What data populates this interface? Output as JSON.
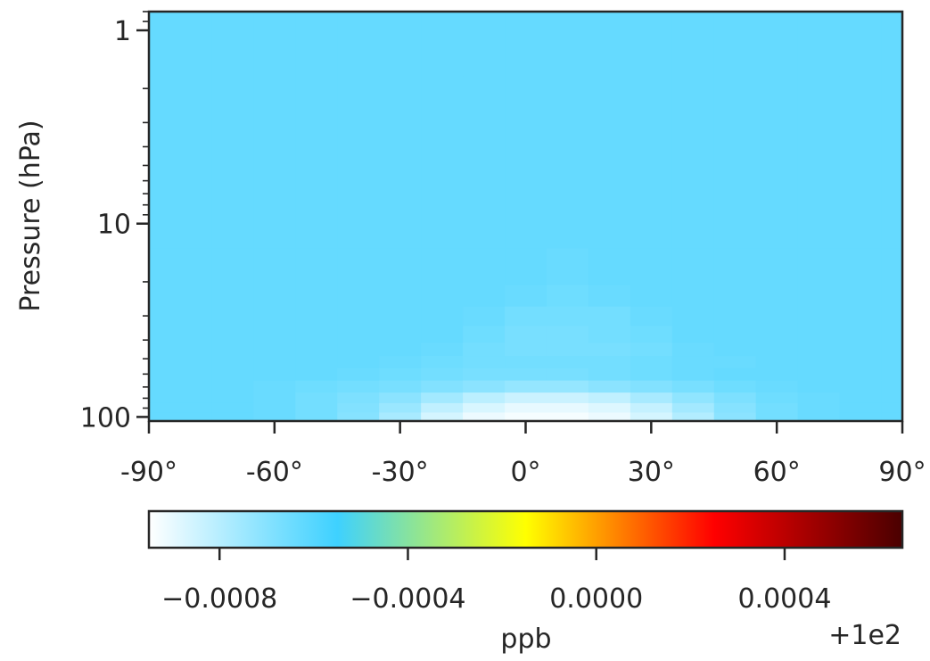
{
  "chart_data": {
    "type": "heatmap",
    "title": "",
    "xlabel": "",
    "ylabel": "Pressure (hPa)",
    "x_range": [
      -90,
      90
    ],
    "x_ticks": [
      -90,
      -60,
      -30,
      0,
      30,
      60,
      90
    ],
    "x_tick_labels": [
      "-90°",
      "-60°",
      "-30°",
      "0°",
      "30°",
      "60°",
      "90°"
    ],
    "y_scale": "log",
    "y_inverted": true,
    "y_range": [
      0.8,
      105
    ],
    "y_ticks": [
      1,
      10,
      100
    ],
    "y_tick_labels": [
      "1",
      "10",
      "100"
    ],
    "latitudes": [
      -90,
      -80,
      -70,
      -60,
      -50,
      -40,
      -30,
      -20,
      -10,
      0,
      10,
      20,
      30,
      40,
      50,
      60,
      70,
      80,
      90
    ],
    "pressure_levels": [
      1,
      3,
      10,
      18,
      24,
      30,
      38,
      45,
      52,
      60,
      70,
      80,
      90,
      100
    ],
    "values_offset": [
      [
        -0.00063,
        -0.00063,
        -0.00063,
        -0.00063,
        -0.00063,
        -0.00063,
        -0.00063,
        -0.00063,
        -0.00063,
        -0.00063,
        -0.00063,
        -0.00063,
        -0.00063,
        -0.00063,
        -0.00063,
        -0.00063,
        -0.00063,
        -0.00063,
        -0.00063
      ],
      [
        -0.00063,
        -0.00063,
        -0.00063,
        -0.00063,
        -0.00063,
        -0.00063,
        -0.00063,
        -0.00063,
        -0.00063,
        -0.00063,
        -0.00063,
        -0.00063,
        -0.00063,
        -0.00063,
        -0.00063,
        -0.00063,
        -0.00063,
        -0.00063,
        -0.00063
      ],
      [
        -0.00063,
        -0.00063,
        -0.00063,
        -0.00063,
        -0.00063,
        -0.00063,
        -0.00063,
        -0.00063,
        -0.00063,
        -0.00063,
        -0.00063,
        -0.00063,
        -0.00063,
        -0.00063,
        -0.00063,
        -0.00063,
        -0.00063,
        -0.00063,
        -0.00063
      ],
      [
        -0.00063,
        -0.00063,
        -0.00063,
        -0.00063,
        -0.00063,
        -0.00063,
        -0.00063,
        -0.00063,
        -0.00063,
        -0.00063,
        -0.00064,
        -0.00063,
        -0.00063,
        -0.00063,
        -0.00063,
        -0.00063,
        -0.00063,
        -0.00063,
        -0.00063
      ],
      [
        -0.00063,
        -0.00063,
        -0.00063,
        -0.00063,
        -0.00063,
        -0.00063,
        -0.00063,
        -0.00063,
        -0.00063,
        -0.00064,
        -0.00065,
        -0.00064,
        -0.00063,
        -0.00063,
        -0.00063,
        -0.00063,
        -0.00063,
        -0.00063,
        -0.00063
      ],
      [
        -0.00063,
        -0.00063,
        -0.00063,
        -0.00063,
        -0.00063,
        -0.00063,
        -0.00063,
        -0.00063,
        -0.00064,
        -0.00066,
        -0.00066,
        -0.00066,
        -0.00064,
        -0.00063,
        -0.00063,
        -0.00063,
        -0.00063,
        -0.00063,
        -0.00063
      ],
      [
        -0.00063,
        -0.00063,
        -0.00063,
        -0.00063,
        -0.00063,
        -0.00063,
        -0.00063,
        -0.00063,
        -0.00065,
        -0.00067,
        -0.00067,
        -0.00066,
        -0.00065,
        -0.00063,
        -0.00063,
        -0.00063,
        -0.00063,
        -0.00063,
        -0.00063
      ],
      [
        -0.00063,
        -0.00063,
        -0.00063,
        -0.00063,
        -0.00063,
        -0.00063,
        -0.00063,
        -0.00064,
        -0.00066,
        -0.00067,
        -0.00067,
        -0.00067,
        -0.00066,
        -0.00064,
        -0.00063,
        -0.00063,
        -0.00063,
        -0.00063,
        -0.00063
      ],
      [
        -0.00063,
        -0.00063,
        -0.00063,
        -0.00063,
        -0.00063,
        -0.00063,
        -0.00064,
        -0.00065,
        -0.00066,
        -0.00066,
        -0.00066,
        -0.00066,
        -0.00065,
        -0.00064,
        -0.00064,
        -0.00063,
        -0.00063,
        -0.00063,
        -0.00063
      ],
      [
        -0.00063,
        -0.00063,
        -0.00063,
        -0.00063,
        -0.00063,
        -0.00064,
        -0.00065,
        -0.00066,
        -0.00067,
        -0.00067,
        -0.00067,
        -0.00066,
        -0.00065,
        -0.00064,
        -0.00063,
        -0.00063,
        -0.00063,
        -0.00063,
        -0.00063
      ],
      [
        -0.00063,
        -0.00063,
        -0.00063,
        -0.00064,
        -0.00065,
        -0.00066,
        -0.00067,
        -0.00069,
        -0.00071,
        -0.00073,
        -0.00073,
        -0.00071,
        -0.00069,
        -0.00067,
        -0.00065,
        -0.00064,
        -0.00063,
        -0.00063,
        -0.00063
      ],
      [
        -0.00063,
        -0.00063,
        -0.00063,
        -0.00064,
        -0.00066,
        -0.00068,
        -0.00071,
        -0.00076,
        -0.00081,
        -0.00084,
        -0.00084,
        -0.00082,
        -0.00077,
        -0.00072,
        -0.00068,
        -0.00065,
        -0.00064,
        -0.00063,
        -0.00063
      ],
      [
        -0.00063,
        -0.00063,
        -0.00063,
        -0.00064,
        -0.00066,
        -0.00069,
        -0.00074,
        -0.00082,
        -0.00087,
        -0.0009,
        -0.0009,
        -0.00088,
        -0.00083,
        -0.00076,
        -0.0007,
        -0.00066,
        -0.00064,
        -0.00063,
        -0.00063
      ],
      [
        -0.00063,
        -0.00063,
        -0.00063,
        -0.00064,
        -0.00066,
        -0.0007,
        -0.00077,
        -0.00086,
        -0.00091,
        -0.00093,
        -0.00093,
        -0.00091,
        -0.00086,
        -0.00079,
        -0.00071,
        -0.00066,
        -0.00064,
        -0.00063,
        -0.00063
      ]
    ],
    "colorbar": {
      "colormap": "jet-white",
      "range": [
        -0.00095,
        0.00065
      ],
      "ticks": [
        -0.0008,
        -0.0004,
        0.0,
        0.0004
      ],
      "tick_labels": [
        "−0.0008",
        "−0.0004",
        "0.0000",
        "0.0004"
      ],
      "label": "ppb",
      "offset_text": "+1e2",
      "colors": [
        [
          0.0,
          "#ffffff"
        ],
        [
          0.25,
          "#3ed1ff"
        ],
        [
          0.5,
          "#ffff00"
        ],
        [
          0.75,
          "#ff0000"
        ],
        [
          1.0,
          "#4a0000"
        ]
      ]
    }
  }
}
